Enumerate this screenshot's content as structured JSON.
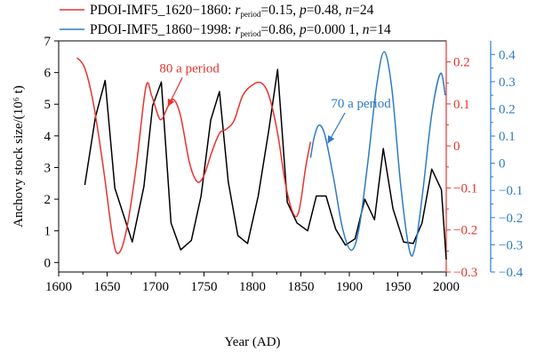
{
  "chart_data": {
    "type": "line",
    "xlabel": "Year (AD)",
    "ylabel": "Anchovy stock size/(10⁶ t)",
    "xlim": [
      1600,
      2000
    ],
    "xticks": [
      "1600",
      "1650",
      "1700",
      "1750",
      "1800",
      "1850",
      "1900",
      "1950",
      "2000"
    ],
    "legend_placement": "top",
    "axes": {
      "left": {
        "ylim": [
          -0.3,
          7.0
        ],
        "ticks": [
          "0",
          "1",
          "2",
          "3",
          "4",
          "5",
          "6",
          "7"
        ],
        "color": "#000000"
      },
      "right1": {
        "ylim": [
          -0.3,
          0.25
        ],
        "ticks": [
          "−0.3",
          "−0.2",
          "−0.1",
          "0",
          "0.1",
          "0.2"
        ],
        "color": "#e8332d"
      },
      "right2": {
        "ylim": [
          -0.4,
          0.45
        ],
        "ticks": [
          "−0.4",
          "−0.3",
          "−0.2",
          "−0.1",
          "0",
          "0.1",
          "0.2",
          "0.3",
          "0.4"
        ],
        "color": "#2f7bc4"
      }
    },
    "legend": [
      {
        "color": "#e8332d",
        "parts": [
          {
            "t": "PDOI-IMF5_1620−1860: ",
            "s": "n"
          },
          {
            "t": "r",
            "s": "i"
          },
          {
            "t": "period",
            "s": "sub"
          },
          {
            "t": "=0.15, ",
            "s": "n"
          },
          {
            "t": "p",
            "s": "i"
          },
          {
            "t": "=0.48, ",
            "s": "n"
          },
          {
            "t": "n",
            "s": "i"
          },
          {
            "t": "=24",
            "s": "n"
          }
        ]
      },
      {
        "color": "#2f7bc4",
        "parts": [
          {
            "t": "PDOI-IMF5_1860−1998: ",
            "s": "n"
          },
          {
            "t": "r",
            "s": "i"
          },
          {
            "t": "period",
            "s": "sub"
          },
          {
            "t": "=0.86, ",
            "s": "n"
          },
          {
            "t": "p",
            "s": "i"
          },
          {
            "t": "=0.000 1, ",
            "s": "n"
          },
          {
            "t": "n",
            "s": "i"
          },
          {
            "t": "=14",
            "s": "n"
          }
        ]
      }
    ],
    "series": [
      {
        "axis": "left",
        "color": "#000000",
        "points": [
          [
            1627,
            2.45
          ],
          [
            1638,
            4.6
          ],
          [
            1648,
            5.75
          ],
          [
            1658,
            2.35
          ],
          [
            1667,
            1.5
          ],
          [
            1676,
            0.65
          ],
          [
            1688,
            2.4
          ],
          [
            1697,
            4.95
          ],
          [
            1706,
            5.7
          ],
          [
            1716,
            1.25
          ],
          [
            1726,
            0.4
          ],
          [
            1737,
            0.7
          ],
          [
            1747,
            2.1
          ],
          [
            1757,
            4.5
          ],
          [
            1766,
            5.4
          ],
          [
            1775,
            2.55
          ],
          [
            1785,
            0.85
          ],
          [
            1795,
            0.6
          ],
          [
            1806,
            2.1
          ],
          [
            1817,
            4.2
          ],
          [
            1826,
            6.1
          ],
          [
            1836,
            1.9
          ],
          [
            1846,
            1.25
          ],
          [
            1857,
            1.0
          ],
          [
            1866,
            2.1
          ],
          [
            1876,
            2.1
          ],
          [
            1886,
            1.05
          ],
          [
            1896,
            0.55
          ],
          [
            1906,
            0.75
          ],
          [
            1916,
            2.0
          ],
          [
            1926,
            1.35
          ],
          [
            1935,
            3.6
          ],
          [
            1945,
            1.7
          ],
          [
            1956,
            0.65
          ],
          [
            1966,
            0.6
          ],
          [
            1975,
            1.25
          ],
          [
            1985,
            2.95
          ],
          [
            1995,
            2.3
          ],
          [
            2000,
            0.1
          ]
        ]
      },
      {
        "axis": "right1",
        "color": "#e8332d",
        "points": [
          [
            1619,
            0.21
          ],
          [
            1627,
            0.185
          ],
          [
            1636,
            0.1
          ],
          [
            1646,
            -0.05
          ],
          [
            1656,
            -0.22
          ],
          [
            1662,
            -0.255
          ],
          [
            1670,
            -0.2
          ],
          [
            1680,
            -0.05
          ],
          [
            1690,
            0.14
          ],
          [
            1696,
            0.12
          ],
          [
            1703,
            0.07
          ],
          [
            1707,
            0.065
          ],
          [
            1713,
            0.095
          ],
          [
            1719,
            0.11
          ],
          [
            1726,
            0.07
          ],
          [
            1735,
            -0.04
          ],
          [
            1743,
            -0.085
          ],
          [
            1750,
            -0.07
          ],
          [
            1758,
            -0.015
          ],
          [
            1766,
            0.03
          ],
          [
            1773,
            0.04
          ],
          [
            1781,
            0.06
          ],
          [
            1790,
            0.12
          ],
          [
            1800,
            0.145
          ],
          [
            1809,
            0.15
          ],
          [
            1817,
            0.12
          ],
          [
            1826,
            0.03
          ],
          [
            1834,
            -0.09
          ],
          [
            1842,
            -0.16
          ],
          [
            1848,
            -0.155
          ],
          [
            1855,
            -0.05
          ],
          [
            1860,
            0.01
          ]
        ]
      },
      {
        "axis": "right2",
        "color": "#2f7bc4",
        "points": [
          [
            1860,
            0.02
          ],
          [
            1864,
            0.1
          ],
          [
            1869,
            0.14
          ],
          [
            1875,
            0.1
          ],
          [
            1884,
            -0.06
          ],
          [
            1893,
            -0.24
          ],
          [
            1902,
            -0.32
          ],
          [
            1910,
            -0.24
          ],
          [
            1919,
            0.0
          ],
          [
            1928,
            0.28
          ],
          [
            1936,
            0.41
          ],
          [
            1944,
            0.27
          ],
          [
            1953,
            -0.08
          ],
          [
            1962,
            -0.32
          ],
          [
            1968,
            -0.305
          ],
          [
            1976,
            -0.1
          ],
          [
            1985,
            0.18
          ],
          [
            1994,
            0.33
          ],
          [
            1999,
            0.25
          ]
        ]
      }
    ],
    "annotations": [
      {
        "text": "80 a period",
        "color": "#e8332d",
        "at": [
          1735,
          0.175
        ],
        "arrow_to": [
          1713,
          0.095
        ]
      },
      {
        "text": "70 a period",
        "color": "#2f7bc4",
        "at": [
          1912,
          0.205
        ],
        "arrow_to": [
          1878,
          0.075
        ]
      }
    ]
  }
}
